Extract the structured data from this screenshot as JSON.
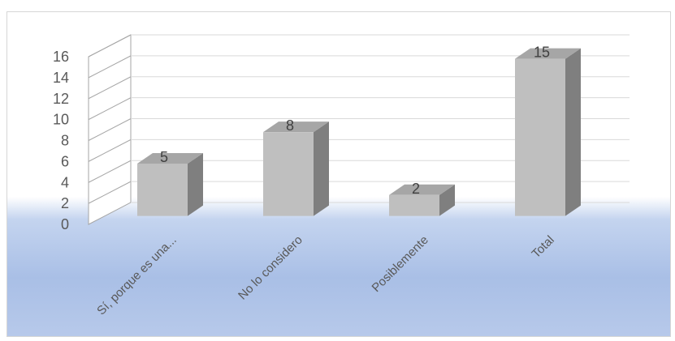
{
  "chart_data": {
    "type": "bar",
    "categories": [
      "Sí, porque es una...",
      "No lo considero",
      "Posiblemente",
      "Total"
    ],
    "values": [
      5,
      8,
      2,
      15
    ],
    "data_labels": [
      "5",
      "8",
      "2",
      "15"
    ],
    "y_ticks": [
      "0",
      "2",
      "4",
      "6",
      "8",
      "10",
      "12",
      "14",
      "16"
    ],
    "ylim": [
      0,
      16
    ],
    "grid": true,
    "three_d": true,
    "colors": {
      "bar_front": "#bfbfbf",
      "bar_side": "#7f7f7f",
      "bar_top": "#a6a6a6",
      "gridline": "#d9d9d9",
      "side_wall": "#a6a6a6"
    }
  }
}
